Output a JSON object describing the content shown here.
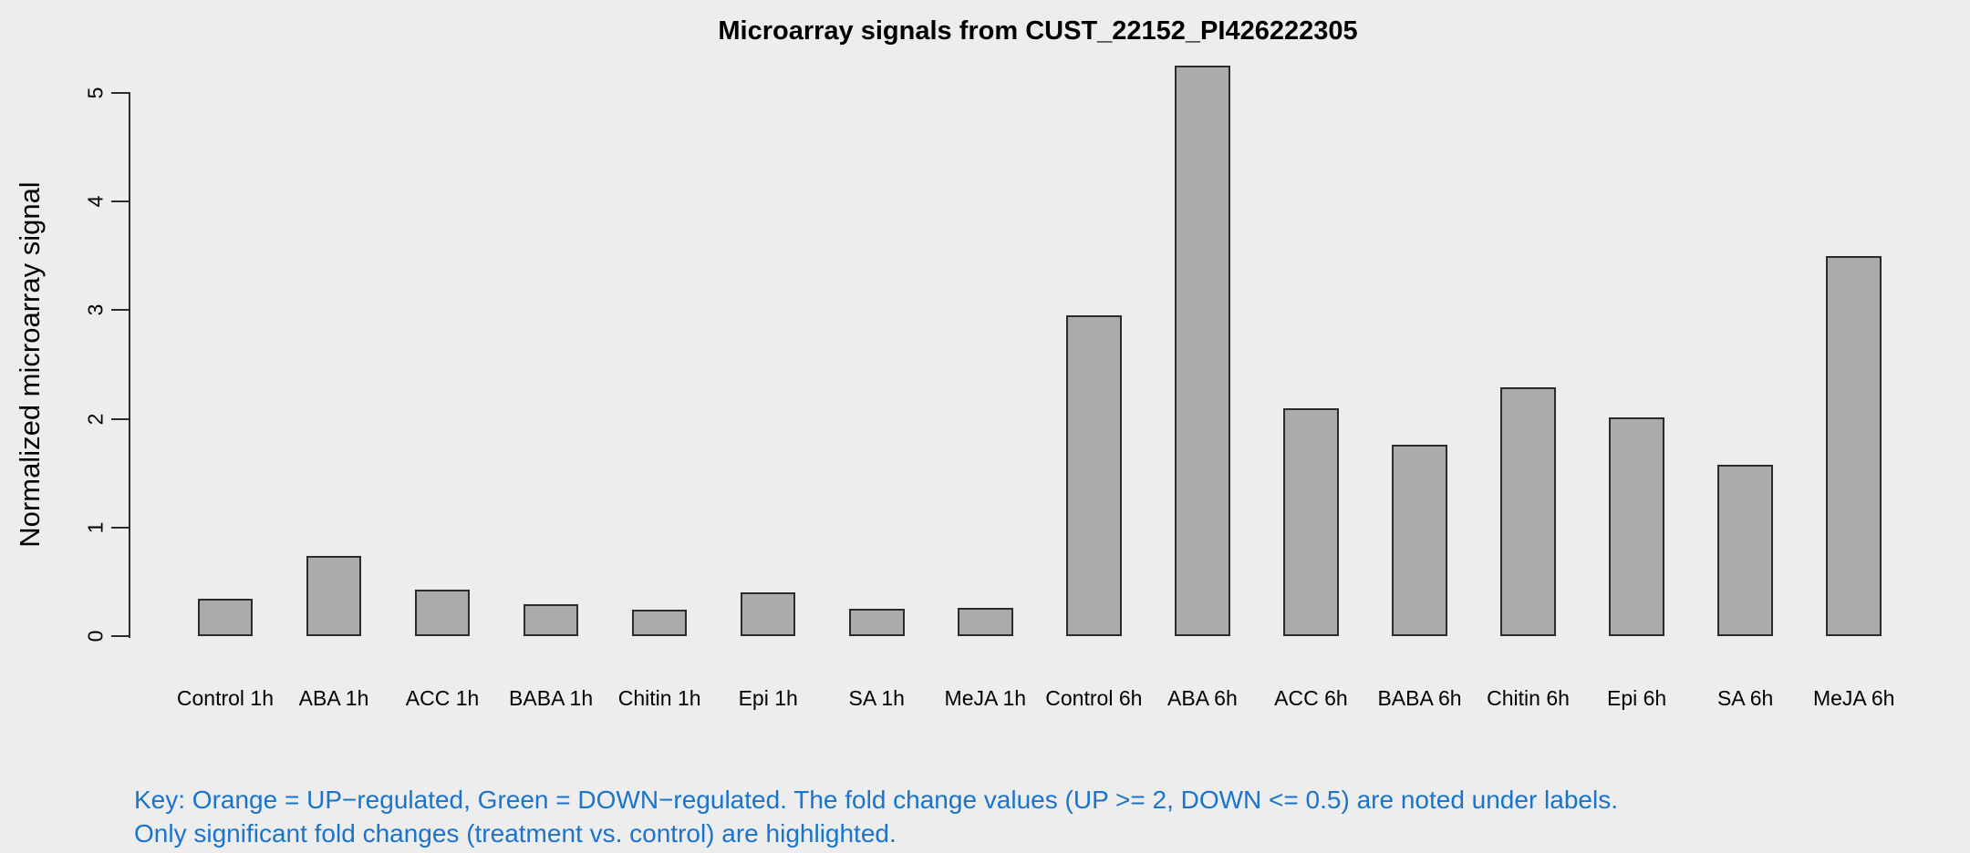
{
  "page": {
    "background_color": "#EDEDED"
  },
  "chart_data": {
    "type": "bar",
    "title": "Microarray signals from CUST_22152_PI426222305",
    "xlabel": "",
    "ylabel": "Normalized microarray signal",
    "categories": [
      "Control 1h",
      "ABA 1h",
      "ACC 1h",
      "BABA 1h",
      "Chitin 1h",
      "Epi 1h",
      "SA 1h",
      "MeJA 1h",
      "Control 6h",
      "ABA 6h",
      "ACC 6h",
      "BABA 6h",
      "Chitin 6h",
      "Epi 6h",
      "SA 6h",
      "MeJA 6h"
    ],
    "values": [
      0.34,
      0.74,
      0.43,
      0.29,
      0.24,
      0.4,
      0.25,
      0.26,
      2.95,
      5.25,
      2.1,
      1.76,
      2.29,
      2.01,
      1.58,
      3.5
    ],
    "y_ticks": [
      0,
      1,
      2,
      3,
      4,
      5
    ],
    "ylim": [
      0,
      5
    ],
    "grid": false,
    "legend_position": "none",
    "bar_fill_color": "#ABABAB",
    "bar_border_color": "#2B2B2B",
    "background_color": "#EDEDED"
  },
  "footnote": {
    "line1": "Key: Orange = UP−regulated, Green = DOWN−regulated. The fold change values (UP >= 2, DOWN <= 0.5) are noted under labels.",
    "line2": "Only significant fold changes (treatment vs. control) are highlighted.",
    "color": "#1874CD"
  }
}
